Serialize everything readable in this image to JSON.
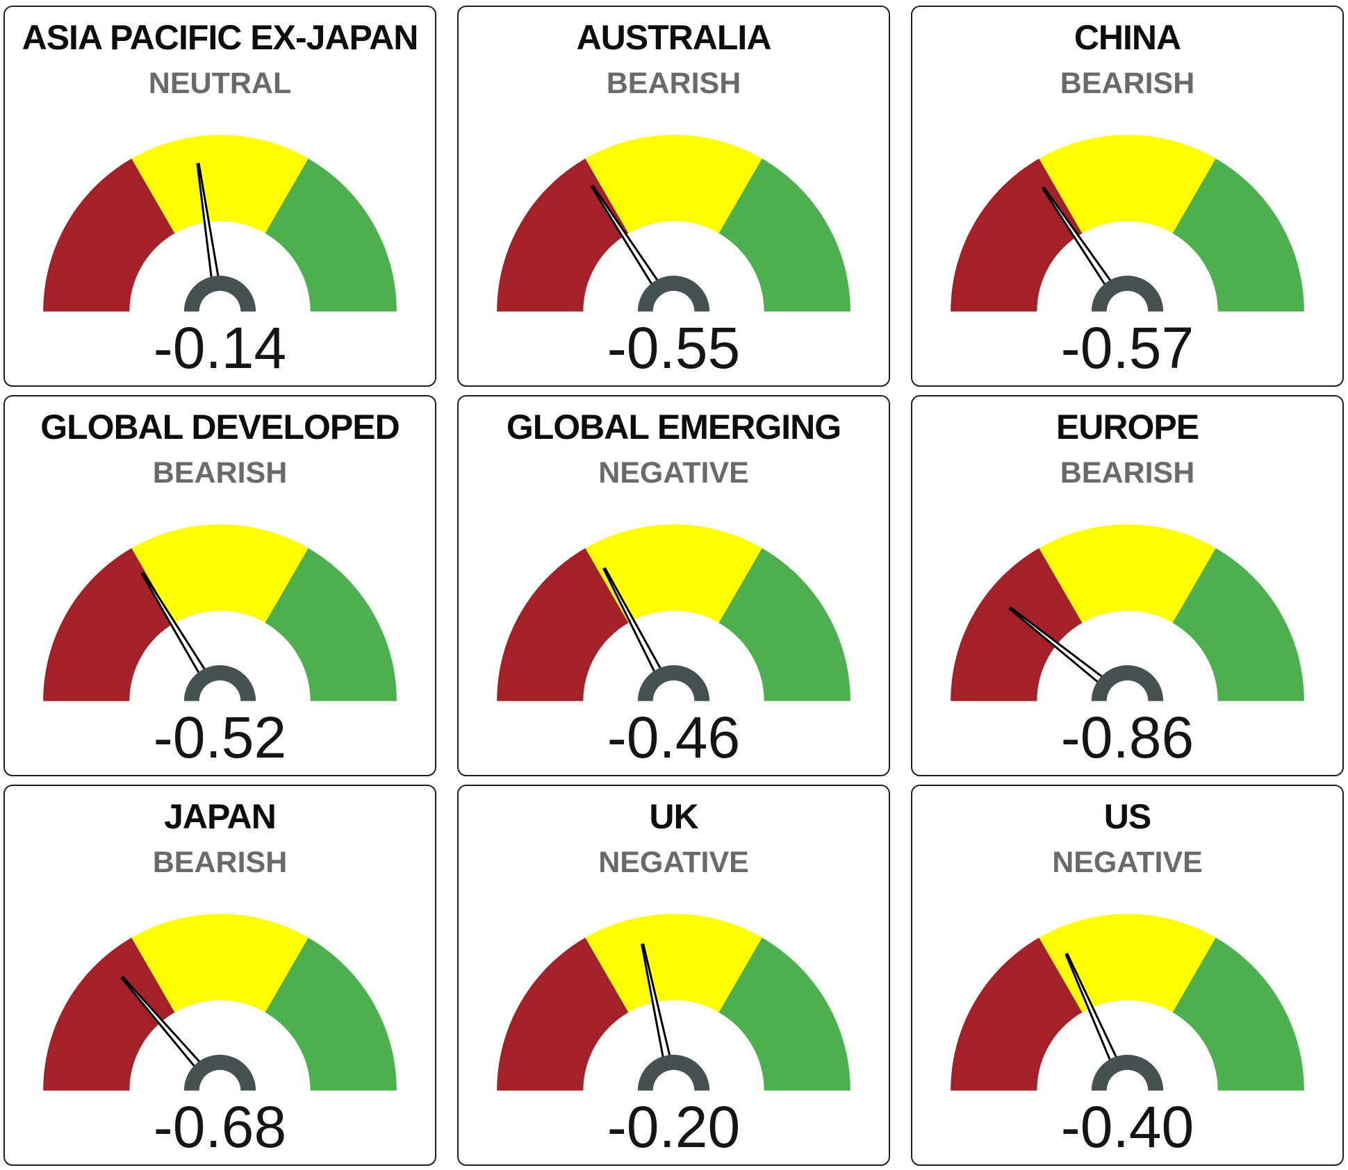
{
  "colors": {
    "red_band": "#A42129",
    "yellow_band": "#FFFF00",
    "green_band": "#4DB04F",
    "pivot": "#455250",
    "needle": "#000000",
    "title_text": "#0D0D0D",
    "status_text": "#6A6A6A",
    "value_text": "#151515",
    "card_border": "#1F1F1F",
    "background": "#FFFFFF"
  },
  "chart_data": {
    "type": "gauge",
    "layout": "3x3-grid",
    "range": [
      -1.5,
      1.5
    ],
    "band_boundaries": [
      -0.5,
      0.5
    ],
    "band_colors_left_to_right": [
      "#A42129",
      "#FFFF00",
      "#4DB04F"
    ],
    "degrees_per_unit": 60,
    "gauges": [
      {
        "title": "ASIA PACIFIC EX-JAPAN",
        "status": "NEUTRAL",
        "value": -0.14,
        "value_display": "-0.14"
      },
      {
        "title": "AUSTRALIA",
        "status": "BEARISH",
        "value": -0.55,
        "value_display": "-0.55"
      },
      {
        "title": "CHINA",
        "status": "BEARISH",
        "value": -0.57,
        "value_display": "-0.57"
      },
      {
        "title": "GLOBAL DEVELOPED",
        "status": "BEARISH",
        "value": -0.52,
        "value_display": "-0.52"
      },
      {
        "title": "GLOBAL EMERGING",
        "status": "NEGATIVE",
        "value": -0.46,
        "value_display": "-0.46"
      },
      {
        "title": "EUROPE",
        "status": "BEARISH",
        "value": -0.86,
        "value_display": "-0.86"
      },
      {
        "title": "JAPAN",
        "status": "BEARISH",
        "value": -0.68,
        "value_display": "-0.68"
      },
      {
        "title": "UK",
        "status": "NEGATIVE",
        "value": -0.2,
        "value_display": "-0.20"
      },
      {
        "title": "US",
        "status": "NEGATIVE",
        "value": -0.4,
        "value_display": "-0.40"
      }
    ]
  }
}
